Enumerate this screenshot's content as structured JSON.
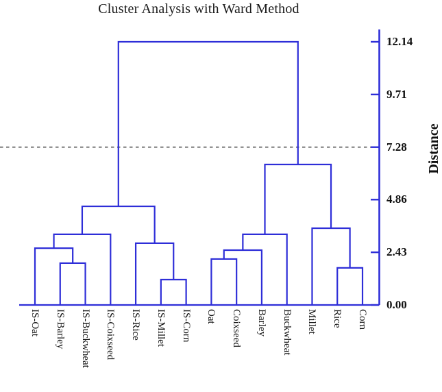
{
  "chart_data": {
    "type": "dendrogram",
    "title": "Cluster Analysis with Ward Method",
    "ylabel": "Distance",
    "ylim": [
      0,
      12.14
    ],
    "yticks": [
      0.0,
      2.43,
      4.86,
      7.28,
      9.71,
      12.14
    ],
    "ytick_labels": [
      "0.00",
      "2.43",
      "4.86",
      "7.28",
      "9.71",
      "12.14"
    ],
    "grid": false,
    "legend": "none",
    "leaves": [
      "IS-Oat",
      "IS-Barley",
      "IS-Buckwheat",
      "IS-Coixseed",
      "IS-Rice",
      "IS-Millet",
      "IS-Corn",
      "Oat",
      "Coixseed",
      "Barley",
      "Buckwheat",
      "Millet",
      "Rice",
      "Corn"
    ],
    "merges": [
      {
        "id": "m1",
        "a": "IS-Barley",
        "b": "IS-Buckwheat",
        "height": 1.93
      },
      {
        "id": "m2",
        "a": "IS-Oat",
        "b": "m1",
        "height": 2.62
      },
      {
        "id": "m3",
        "a": "m2",
        "b": "IS-Coixseed",
        "height": 3.26
      },
      {
        "id": "m4",
        "a": "IS-Millet",
        "b": "IS-Corn",
        "height": 1.17
      },
      {
        "id": "m5",
        "a": "IS-Rice",
        "b": "m4",
        "height": 2.85
      },
      {
        "id": "m6",
        "a": "m3",
        "b": "m5",
        "height": 4.55
      },
      {
        "id": "m7",
        "a": "Oat",
        "b": "Coixseed",
        "height": 2.12
      },
      {
        "id": "m8",
        "a": "m7",
        "b": "Barley",
        "height": 2.53
      },
      {
        "id": "m9",
        "a": "m8",
        "b": "Buckwheat",
        "height": 3.26
      },
      {
        "id": "m10",
        "a": "Rice",
        "b": "Corn",
        "height": 1.71
      },
      {
        "id": "m11",
        "a": "Millet",
        "b": "m10",
        "height": 3.54
      },
      {
        "id": "m12",
        "a": "m9",
        "b": "m11",
        "height": 6.48
      },
      {
        "id": "m13",
        "a": "m6",
        "b": "m12",
        "height": 12.14
      }
    ],
    "threshold_line": {
      "value": 7.28,
      "style": "dashed"
    },
    "colors": {
      "dendrogram_line": "#2e2ed8",
      "threshold_line": "#555555",
      "text": "#111111",
      "background": "#ffffff"
    }
  }
}
